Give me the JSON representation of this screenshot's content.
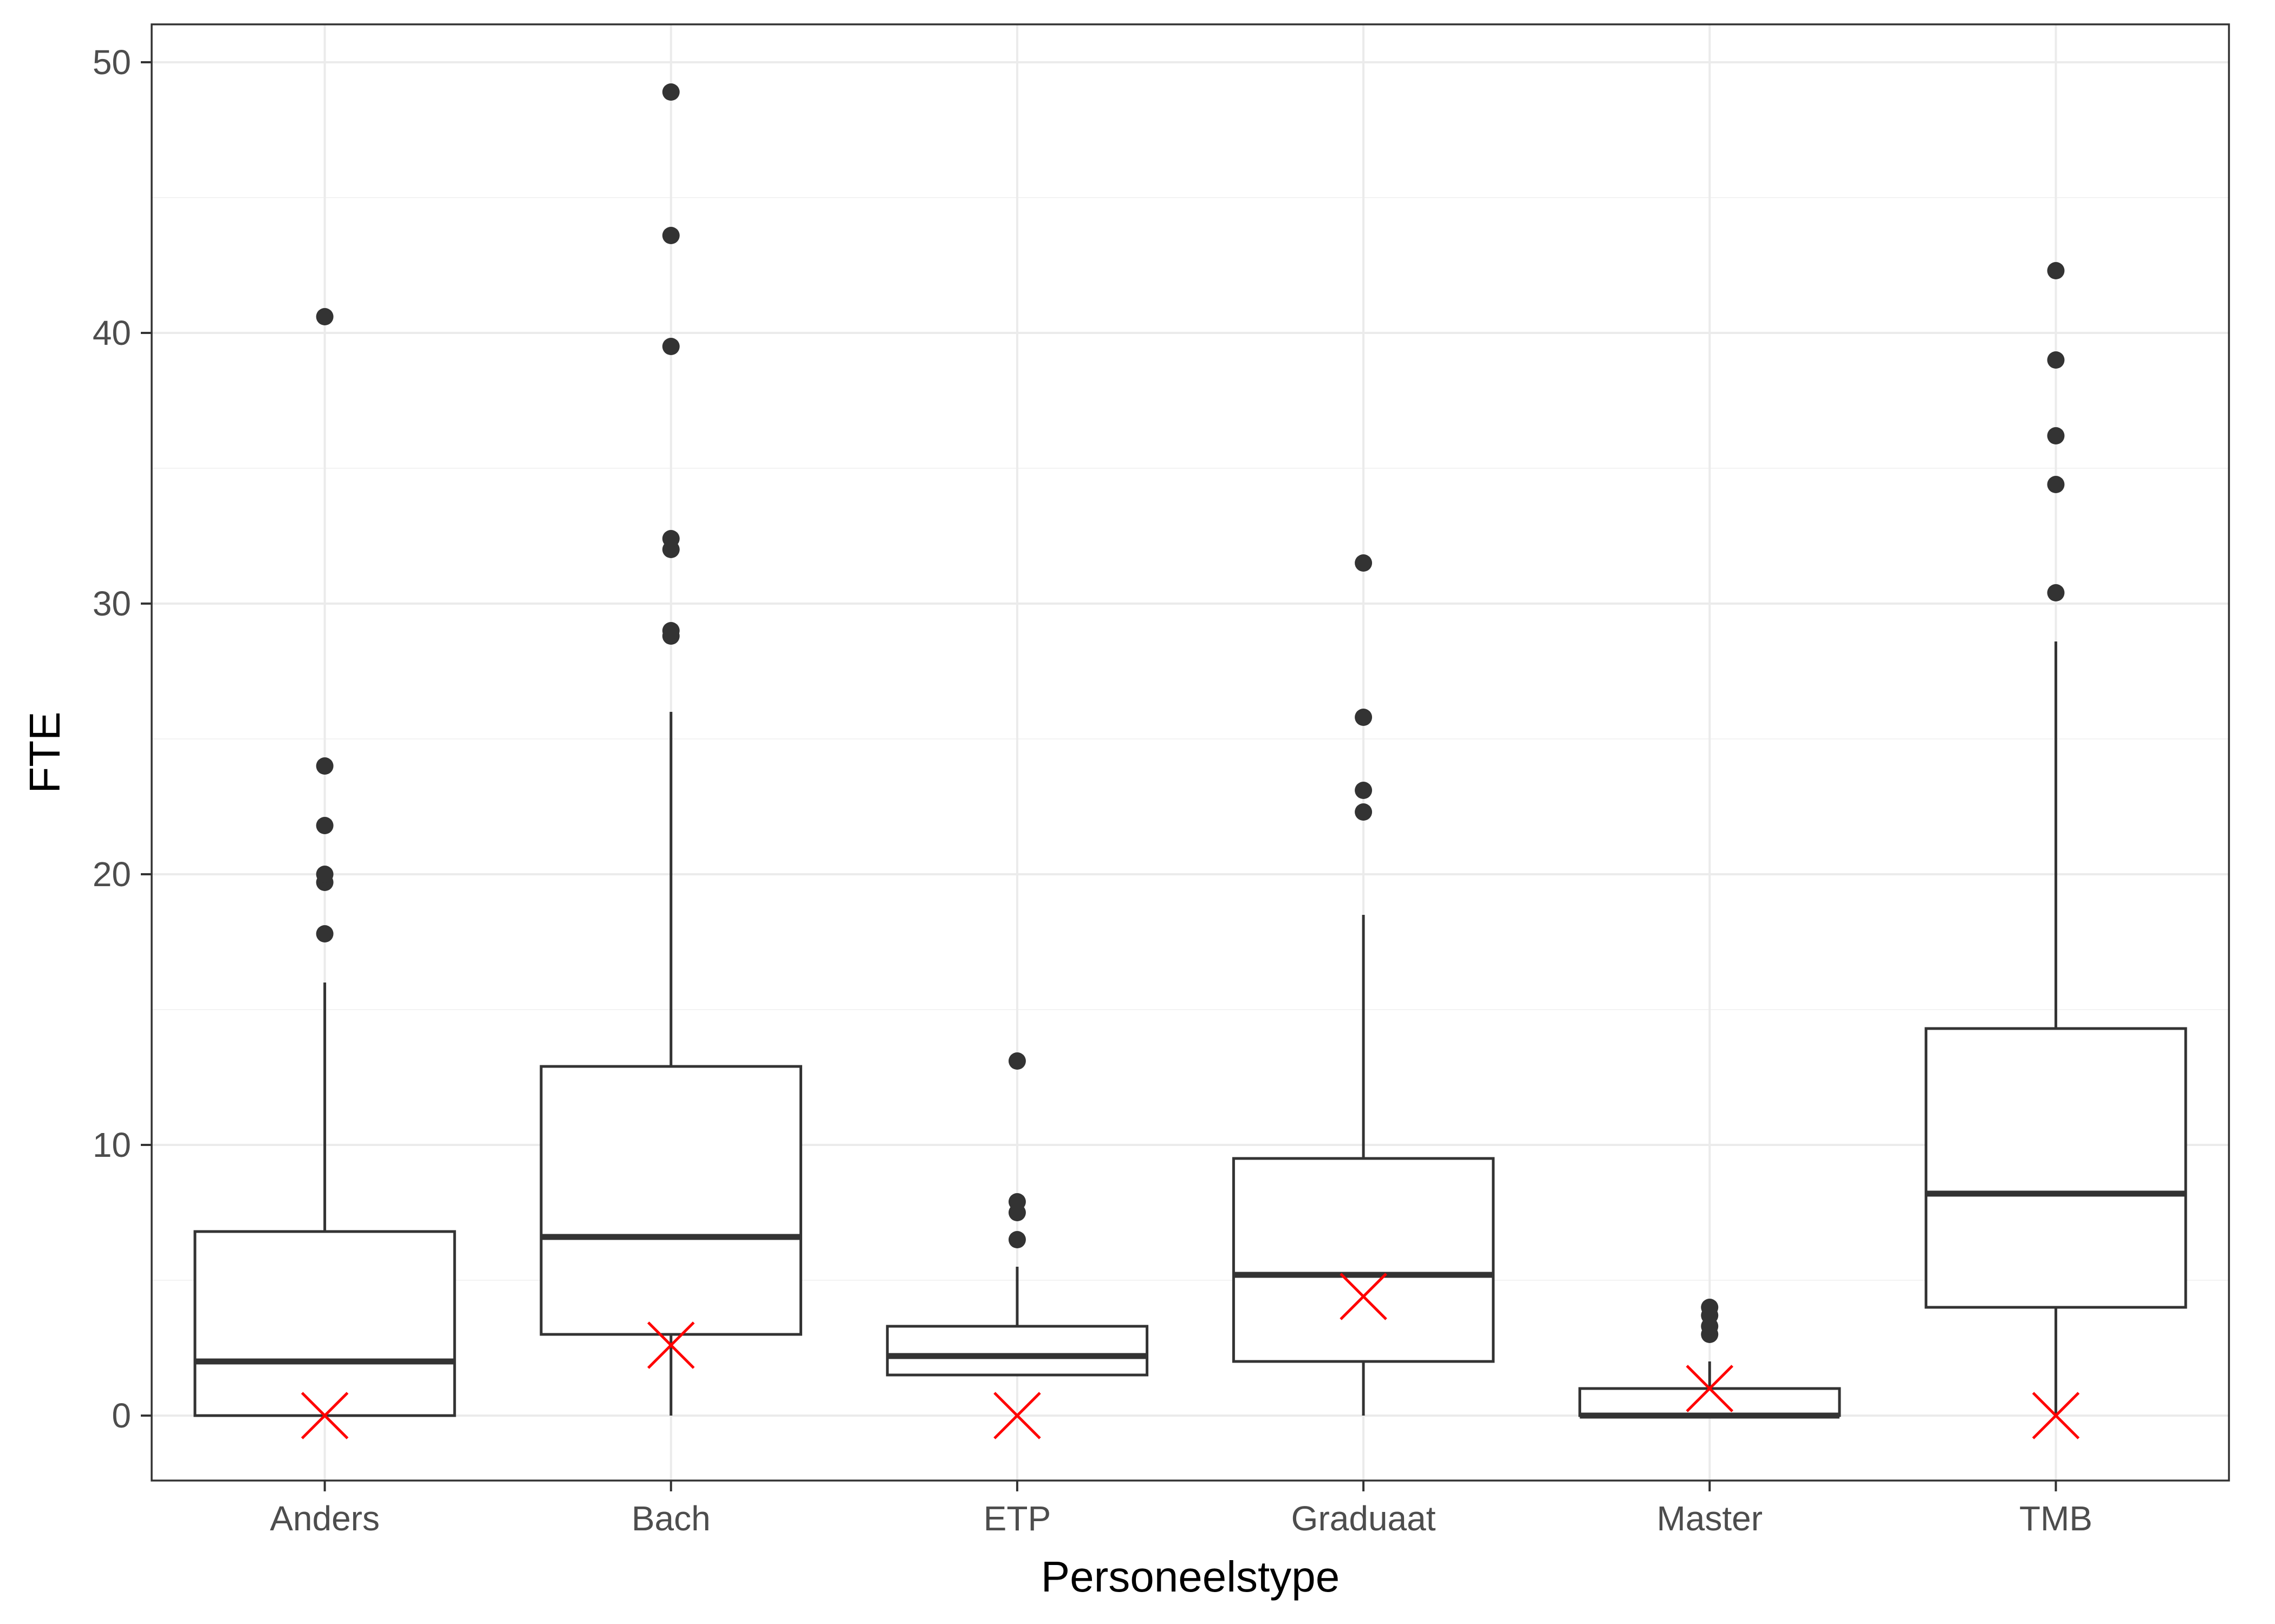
{
  "chart_data": {
    "type": "boxplot",
    "title": "",
    "xlabel": "Personeelstype",
    "ylabel": "FTE",
    "ylim": [
      -2.4,
      51.4
    ],
    "yticks": [
      0,
      10,
      20,
      30,
      40,
      50
    ],
    "ytick_labels": [
      "0",
      "10",
      "20",
      "30",
      "40",
      "50"
    ],
    "grid": true,
    "theme": "bw",
    "colors": {
      "box_stroke": "#333333",
      "outlier": "#333333",
      "mean_marker": "#ff0000",
      "grid_major": "#ebebeb",
      "grid_minor": "#f3f3f3",
      "panel_border": "#333333",
      "tick_text": "#4d4d4d"
    },
    "categories": [
      "Anders",
      "Bach",
      "ETP",
      "Graduaat",
      "Master",
      "TMB"
    ],
    "boxes": [
      {
        "category": "Anders",
        "whisker_low": 0,
        "q1": 0,
        "median": 2,
        "q3": 6.8,
        "whisker_high": 16,
        "outliers": [
          17.8,
          19.7,
          20,
          21.8,
          24,
          40.6
        ],
        "marker": 0
      },
      {
        "category": "Bach",
        "whisker_low": 0,
        "q1": 3,
        "median": 6.6,
        "q3": 12.9,
        "whisker_high": 26,
        "outliers": [
          28.8,
          29,
          32,
          32.4,
          39.5,
          43.6,
          48.9
        ],
        "marker": 2.6
      },
      {
        "category": "ETP",
        "whisker_low": 1.5,
        "q1": 1.5,
        "median": 2.2,
        "q3": 3.3,
        "whisker_high": 5.5,
        "outliers": [
          6.5,
          7.5,
          7.9,
          13.1
        ],
        "marker": 0
      },
      {
        "category": "Graduaat",
        "whisker_low": 0,
        "q1": 2,
        "median": 5.2,
        "q3": 9.5,
        "whisker_high": 18.5,
        "outliers": [
          22.3,
          23.1,
          25.8,
          31.5
        ],
        "marker": 4.4
      },
      {
        "category": "Master",
        "whisker_low": 0,
        "q1": 0,
        "median": 0,
        "q3": 1,
        "whisker_high": 2,
        "outliers": [
          3,
          3.3,
          3.7,
          4
        ],
        "marker": 1
      },
      {
        "category": "TMB",
        "whisker_low": 0,
        "q1": 4,
        "median": 8.2,
        "q3": 14.3,
        "whisker_high": 28.6,
        "outliers": [
          30.4,
          34.4,
          36.2,
          39,
          42.3
        ],
        "marker": 0
      }
    ]
  }
}
